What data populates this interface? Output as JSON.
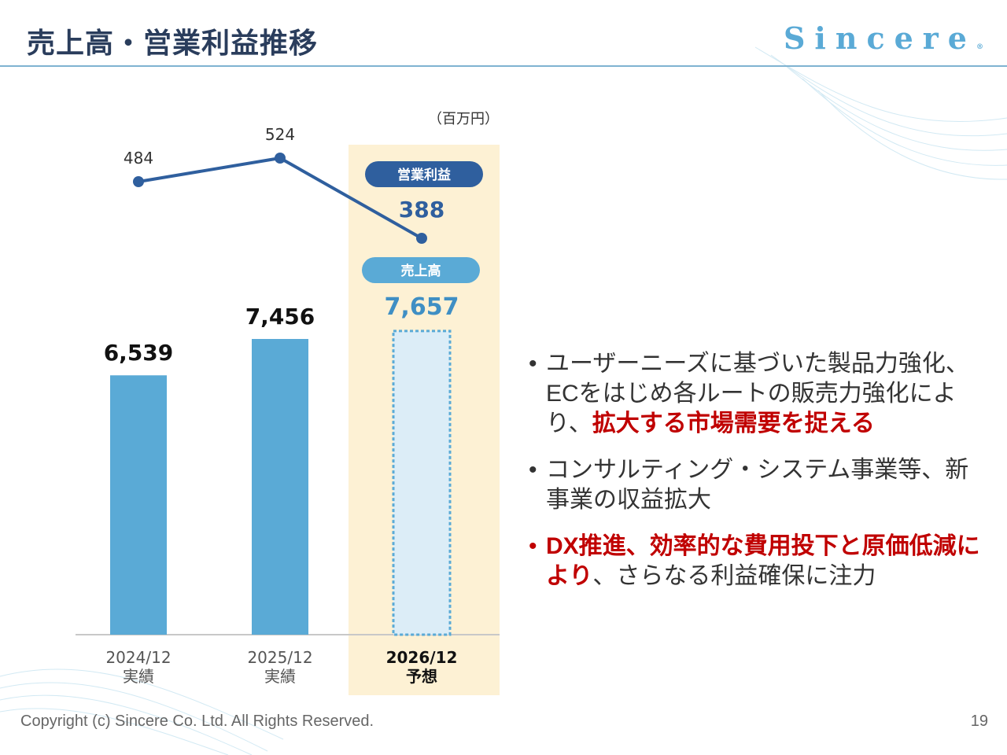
{
  "header": {
    "title": "売上高・営業利益推移",
    "logo_text": "Sincere",
    "logo_mark": "®"
  },
  "chart_data": {
    "type": "bar+line",
    "unit": "（百万円）",
    "categories": [
      "2024/12",
      "2025/12",
      "2026/12"
    ],
    "category_sublabels": [
      "実績",
      "実績",
      "予想"
    ],
    "series": [
      {
        "name": "売上高",
        "type": "bar",
        "values": [
          6539,
          7456,
          7657
        ],
        "value_labels": [
          "6,539",
          "7,456",
          "7,657"
        ],
        "forecast": [
          false,
          false,
          true
        ]
      },
      {
        "name": "営業利益",
        "type": "line",
        "values": [
          484,
          524,
          388
        ],
        "value_labels": [
          "484",
          "524",
          "388"
        ],
        "forecast": [
          false,
          false,
          true
        ]
      }
    ],
    "highlight_category": "2026/12",
    "colors": {
      "bar": "#5aaad6",
      "bar_forecast_fill": "#dcedf7",
      "bar_forecast_border": "#5aaad6",
      "line": "#2f5f9e",
      "highlight_band": "#fdf1d4",
      "sales_badge": "#5aaad6",
      "profit_badge": "#2f5f9e"
    }
  },
  "bullets": [
    {
      "text_parts": [
        {
          "text": "ユーザーニーズに基づいた製品力強化、ECをはじめ各ルートの販売力強化により、",
          "emph": false
        },
        {
          "text": "拡大する市場需要を捉える",
          "emph": true
        }
      ]
    },
    {
      "text_parts": [
        {
          "text": "コンサルティング・システム事業等、新事業の収益拡大",
          "emph": false
        }
      ]
    },
    {
      "text_parts": [
        {
          "text": "DX推進、効率的な費用投下と原価低減により",
          "emph": true
        },
        {
          "text": "、さらなる利益確保に注力",
          "emph": false
        }
      ]
    }
  ],
  "bullet_mark": "•",
  "footer": {
    "copyright": "Copyright (c) Sincere Co. Ltd. All Rights Reserved.",
    "page_number": "19"
  }
}
